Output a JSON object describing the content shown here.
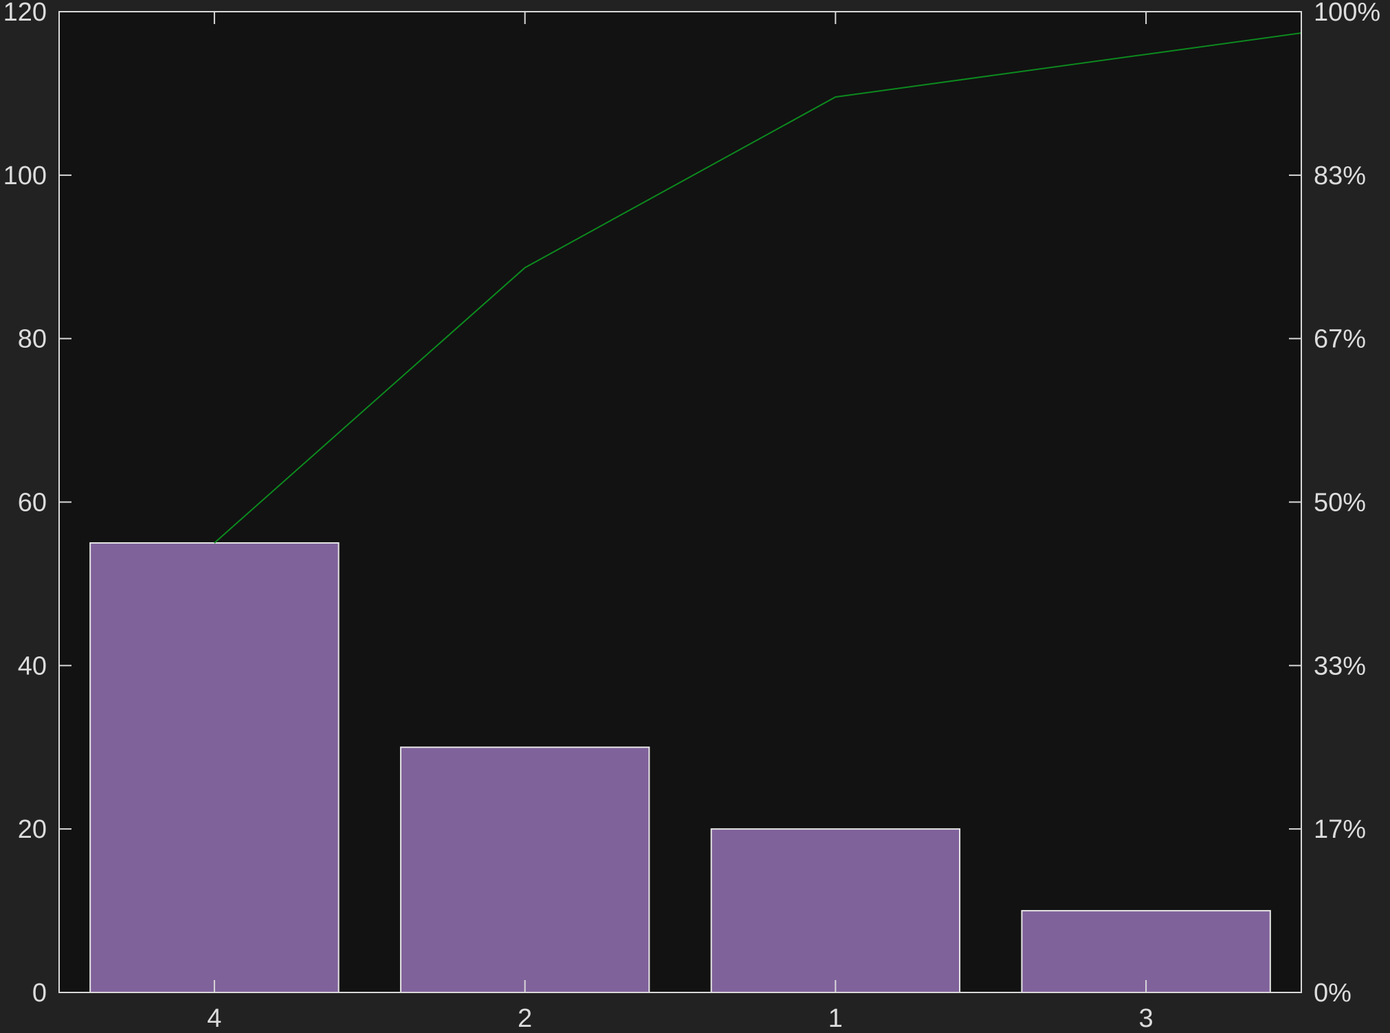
{
  "colors": {
    "page_background": "#222222",
    "plot_background": "#121212",
    "bar_fill": "#80629b",
    "bar_edge": "#e6e6e6",
    "cumulative_line": "#0c8a1e",
    "axis": "#d9d9d9",
    "text": "#dcdcdc"
  },
  "chart_data": {
    "type": "bar",
    "subtype": "pareto",
    "title": "",
    "xlabel": "",
    "ylabel": "",
    "categories": [
      "4",
      "2",
      "1",
      "3"
    ],
    "values": [
      55,
      30,
      20,
      10
    ],
    "cumulative_percent": [
      47.8,
      73.9,
      91.3,
      100
    ],
    "ylim": [
      0,
      120
    ],
    "y_ticks": [
      0,
      20,
      40,
      60,
      80,
      100,
      120
    ],
    "y_tick_labels": [
      "0",
      "20",
      "40",
      "60",
      "80",
      "100",
      "120"
    ],
    "y2_ticks": [
      0,
      16.67,
      33.33,
      50,
      66.67,
      83.33,
      100
    ],
    "y2_tick_labels": [
      "0%",
      "17%",
      "33%",
      "50%",
      "67%",
      "83%",
      "100%"
    ],
    "grid": false,
    "legend": "none"
  }
}
